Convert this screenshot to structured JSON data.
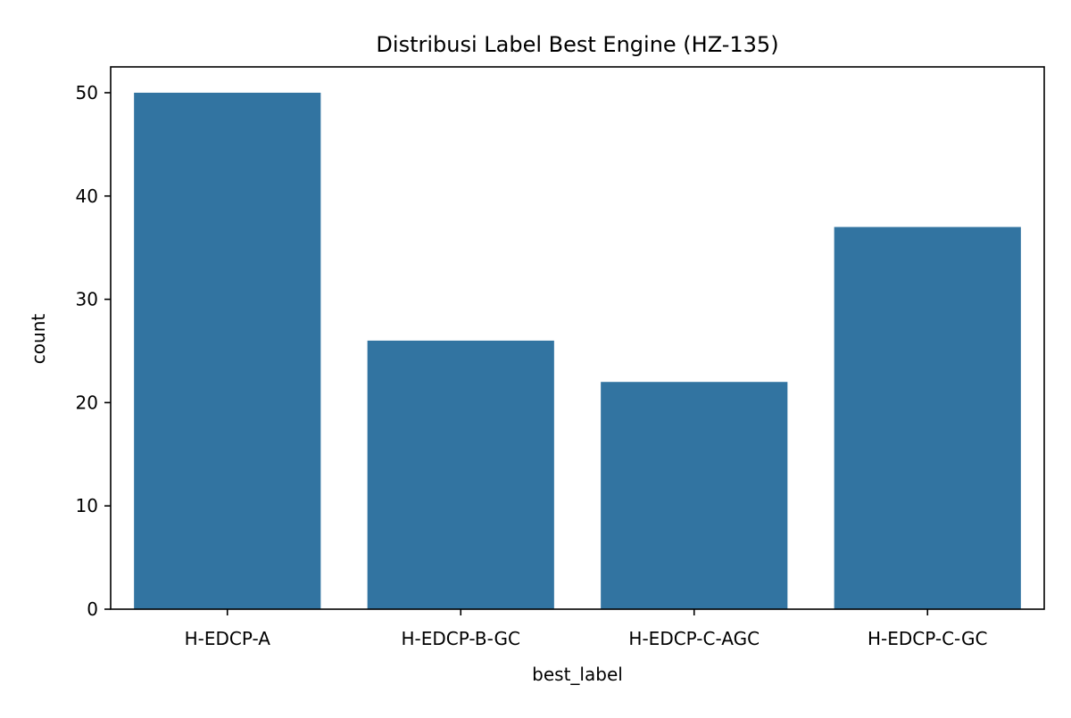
{
  "chart_data": {
    "type": "bar",
    "title": "Distribusi Label Best Engine (HZ-135)",
    "xlabel": "best_label",
    "ylabel": "count",
    "categories": [
      "H-EDCP-A",
      "H-EDCP-B-GC",
      "H-EDCP-C-AGC",
      "H-EDCP-C-GC"
    ],
    "values": [
      50,
      26,
      22,
      37
    ],
    "ylim": [
      0,
      52.5
    ],
    "yticks": [
      0,
      10,
      20,
      30,
      40,
      50
    ],
    "grid": false,
    "bar_color": "#3274a1"
  }
}
